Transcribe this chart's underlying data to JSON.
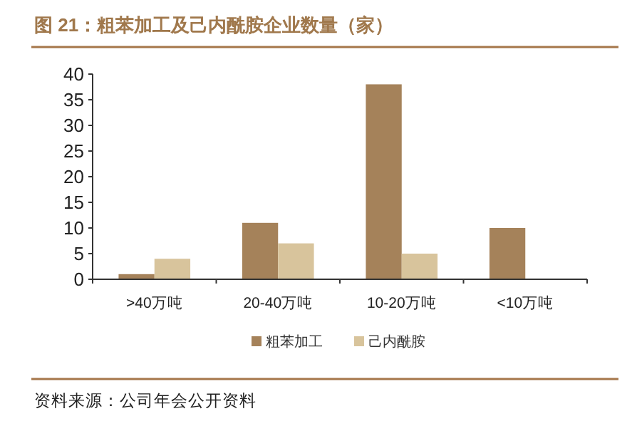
{
  "chart_data": {
    "type": "bar",
    "title": "图 21：粗苯加工及己内酰胺企业数量（家）",
    "categories": [
      ">40万吨",
      "20-40万吨",
      "10-20万吨",
      "<10万吨"
    ],
    "series": [
      {
        "name": "粗苯加工",
        "color": "#a5825a",
        "values": [
          1,
          11,
          38,
          10
        ]
      },
      {
        "name": "己内酰胺",
        "color": "#d8c49c",
        "values": [
          4,
          7,
          5,
          null
        ]
      }
    ],
    "ylim": [
      0,
      40
    ],
    "yticks": [
      0,
      5,
      10,
      15,
      20,
      25,
      30,
      35,
      40
    ],
    "legend": "bottom",
    "annotations": [
      "资料来源：公司年会公开资料"
    ]
  }
}
